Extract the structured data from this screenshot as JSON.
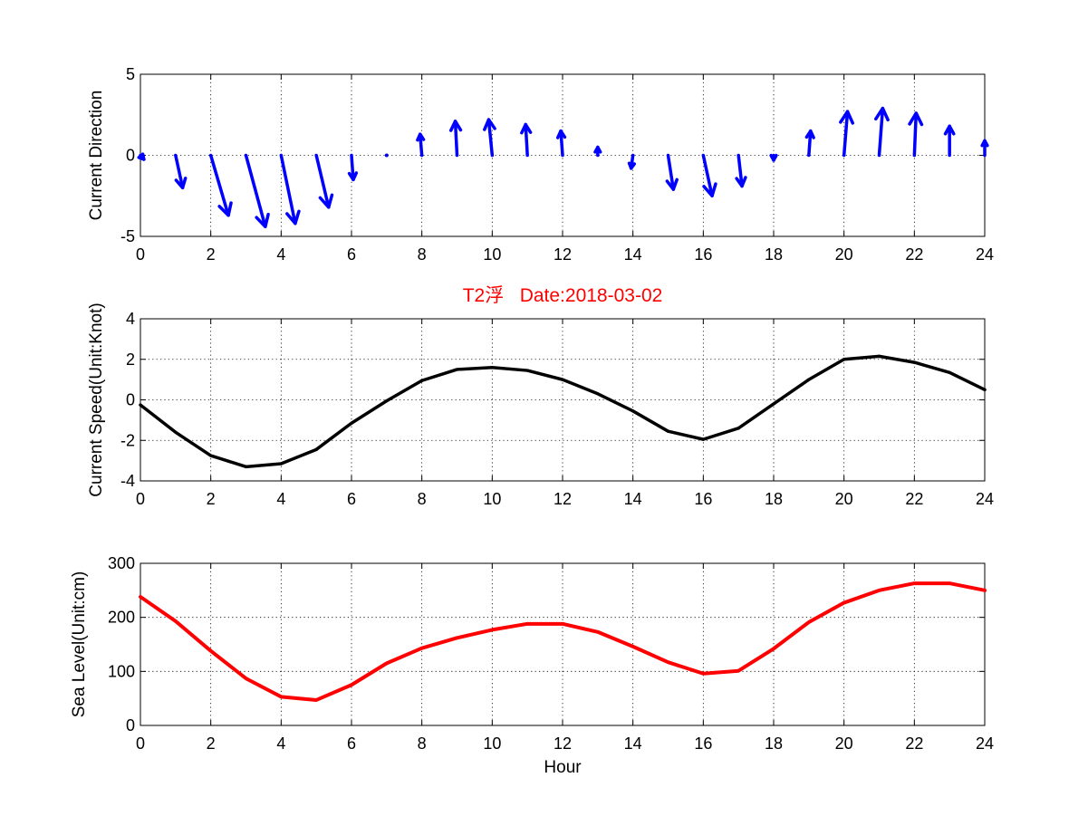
{
  "figure_title": "T2浮   Date:2018-03-02",
  "colors": {
    "direction": "#0000ff",
    "speed": "#000000",
    "sea_level": "#ff0000",
    "title": "#ff0000"
  },
  "chart_data": [
    {
      "type": "quiver",
      "ylabel": "Current Direction",
      "xlim": [
        0,
        24
      ],
      "ylim": [
        -5,
        5
      ],
      "xticks": [
        0,
        2,
        4,
        6,
        8,
        10,
        12,
        14,
        16,
        18,
        20,
        22,
        24
      ],
      "yticks": [
        -5,
        0,
        5
      ],
      "grid": true,
      "x": [
        0,
        1,
        2,
        3,
        4,
        5,
        6,
        7,
        8,
        9,
        10,
        11,
        12,
        13,
        14,
        15,
        16,
        17,
        18,
        19,
        20,
        21,
        22,
        23,
        24
      ],
      "u": [
        0.1,
        0.2,
        0.5,
        0.55,
        0.4,
        0.35,
        0.05,
        0.0,
        -0.05,
        -0.05,
        -0.1,
        -0.05,
        -0.05,
        0.0,
        -0.05,
        0.15,
        0.25,
        0.1,
        0.0,
        0.05,
        0.1,
        0.1,
        0.05,
        0.0,
        0.0
      ],
      "v": [
        -0.25,
        -2.0,
        -3.7,
        -4.4,
        -4.2,
        -3.2,
        -1.5,
        -0.2,
        1.3,
        2.1,
        2.2,
        1.9,
        1.5,
        0.5,
        -0.8,
        -2.1,
        -2.5,
        -1.9,
        -0.3,
        1.5,
        2.7,
        2.9,
        2.6,
        1.8,
        0.9
      ]
    },
    {
      "type": "line",
      "ylabel": "Current Speed(Unit:Knot)",
      "xlim": [
        0,
        24
      ],
      "ylim": [
        -4,
        4
      ],
      "xticks": [
        0,
        2,
        4,
        6,
        8,
        10,
        12,
        14,
        16,
        18,
        20,
        22,
        24
      ],
      "yticks": [
        -4,
        -2,
        0,
        2,
        4
      ],
      "grid": true,
      "x": [
        0,
        1,
        2,
        3,
        4,
        5,
        6,
        7,
        8,
        9,
        10,
        11,
        12,
        13,
        14,
        15,
        16,
        17,
        18,
        19,
        20,
        21,
        22,
        23,
        24
      ],
      "y": [
        -0.25,
        -1.6,
        -2.75,
        -3.3,
        -3.15,
        -2.45,
        -1.15,
        -0.05,
        0.95,
        1.5,
        1.6,
        1.45,
        1.0,
        0.3,
        -0.55,
        -1.55,
        -1.95,
        -1.4,
        -0.2,
        1.0,
        2.0,
        2.15,
        1.85,
        1.35,
        0.5
      ]
    },
    {
      "type": "line",
      "ylabel": "Sea Level(Unit:cm)",
      "xlabel": "Hour",
      "xlim": [
        0,
        24
      ],
      "ylim": [
        0,
        300
      ],
      "xticks": [
        0,
        2,
        4,
        6,
        8,
        10,
        12,
        14,
        16,
        18,
        20,
        22,
        24
      ],
      "yticks": [
        0,
        100,
        200,
        300
      ],
      "grid": true,
      "x": [
        0,
        1,
        2,
        3,
        4,
        5,
        6,
        7,
        8,
        9,
        10,
        11,
        12,
        13,
        14,
        15,
        16,
        17,
        18,
        19,
        20,
        21,
        22,
        23,
        24
      ],
      "y": [
        238,
        193,
        138,
        87,
        53,
        47,
        75,
        115,
        143,
        162,
        177,
        188,
        188,
        173,
        146,
        117,
        96,
        101,
        142,
        191,
        227,
        250,
        263,
        263,
        250
      ]
    }
  ]
}
